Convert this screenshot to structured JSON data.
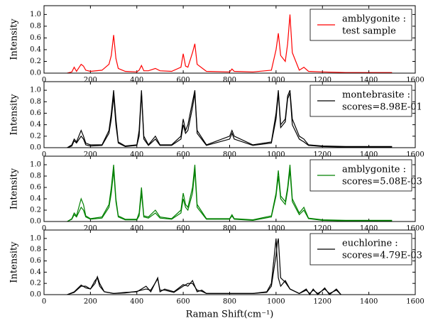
{
  "chart_data": [
    {
      "type": "line",
      "ylabel": "Intensity",
      "legend": "upper right",
      "legend_note": "test sample",
      "xlim": [
        0,
        1600
      ],
      "xticks": [
        0,
        200,
        400,
        600,
        800,
        1000,
        1200,
        1400,
        1600
      ],
      "ylim": [
        0,
        1.15
      ],
      "yticks": [
        {
          "value": 0,
          "label": "0.0"
        },
        {
          "value": 0.2,
          "label": "0.2"
        },
        {
          "value": 0.4,
          "label": "0.4"
        },
        {
          "value": 0.6,
          "label": "0.6"
        },
        {
          "value": 0.8,
          "label": "0.8"
        },
        {
          "value": 1,
          "label": "1.0"
        }
      ],
      "x": [
        100,
        120,
        130,
        140,
        160,
        170,
        180,
        200,
        250,
        280,
        290,
        300,
        310,
        320,
        350,
        400,
        410,
        420,
        430,
        450,
        480,
        500,
        550,
        590,
        600,
        610,
        620,
        640,
        650,
        660,
        700,
        800,
        810,
        820,
        900,
        980,
        1000,
        1010,
        1020,
        1040,
        1050,
        1060,
        1070,
        1100,
        1120,
        1140,
        1200,
        1300,
        1400,
        1500
      ],
      "series": [
        {
          "name": "amblygonite :",
          "color": "#ff0000",
          "values": [
            0,
            0.02,
            0.1,
            0.03,
            0.15,
            0.12,
            0.05,
            0.03,
            0.05,
            0.15,
            0.3,
            0.65,
            0.25,
            0.08,
            0.03,
            0.02,
            0.05,
            0.13,
            0.04,
            0.04,
            0.08,
            0.04,
            0.03,
            0.1,
            0.33,
            0.12,
            0.1,
            0.35,
            0.5,
            0.15,
            0.03,
            0.02,
            0.07,
            0.03,
            0.02,
            0.05,
            0.4,
            0.68,
            0.3,
            0.2,
            0.5,
            1.0,
            0.35,
            0.05,
            0.1,
            0.03,
            0.02,
            0.01,
            0.01,
            0.01
          ]
        }
      ]
    },
    {
      "type": "line",
      "ylabel": "Intensity",
      "legend": "upper right",
      "legend_note": "scores=8.98E-01",
      "xlim": [
        0,
        1600
      ],
      "xticks": [
        0,
        200,
        400,
        600,
        800,
        1000,
        1200,
        1400,
        1600
      ],
      "ylim": [
        0,
        1.15
      ],
      "yticks": [
        {
          "value": 0,
          "label": "0.0"
        },
        {
          "value": 0.2,
          "label": "0.2"
        },
        {
          "value": 0.4,
          "label": "0.4"
        },
        {
          "value": 0.6,
          "label": "0.6"
        },
        {
          "value": 0.8,
          "label": "0.8"
        },
        {
          "value": 1,
          "label": "1.0"
        }
      ],
      "x": [
        100,
        120,
        130,
        140,
        160,
        170,
        180,
        200,
        250,
        280,
        290,
        300,
        310,
        320,
        350,
        400,
        410,
        420,
        430,
        450,
        480,
        500,
        550,
        590,
        600,
        610,
        620,
        640,
        650,
        660,
        700,
        800,
        810,
        820,
        900,
        980,
        1000,
        1010,
        1020,
        1040,
        1050,
        1060,
        1070,
        1100,
        1120,
        1140,
        1200,
        1300,
        1400,
        1500
      ],
      "series": [
        {
          "name": "montebrasite :",
          "color": "#000000",
          "values": [
            0,
            0.05,
            0.15,
            0.1,
            0.3,
            0.2,
            0.08,
            0.05,
            0.05,
            0.3,
            0.6,
            1.0,
            0.5,
            0.1,
            0.03,
            0.05,
            0.3,
            1.0,
            0.2,
            0.05,
            0.2,
            0.05,
            0.05,
            0.2,
            0.5,
            0.3,
            0.4,
            0.8,
            1.0,
            0.3,
            0.05,
            0.2,
            0.3,
            0.2,
            0.05,
            0.1,
            0.6,
            1.0,
            0.4,
            0.5,
            0.9,
            1.0,
            0.5,
            0.2,
            0.15,
            0.05,
            0.03,
            0.02,
            0.02,
            0.02
          ]
        },
        {
          "color": "#000000",
          "values": [
            0,
            0.03,
            0.12,
            0.08,
            0.2,
            0.15,
            0.05,
            0.03,
            0.04,
            0.25,
            0.5,
            0.9,
            0.4,
            0.08,
            0.02,
            0.04,
            0.2,
            0.95,
            0.15,
            0.04,
            0.15,
            0.04,
            0.04,
            0.15,
            0.4,
            0.25,
            0.3,
            0.7,
            0.95,
            0.25,
            0.04,
            0.15,
            0.25,
            0.15,
            0.04,
            0.08,
            0.5,
            0.95,
            0.35,
            0.45,
            0.85,
            0.95,
            0.4,
            0.15,
            0.1,
            0.04,
            0.02,
            0.01,
            0.01,
            0.01
          ]
        }
      ]
    },
    {
      "type": "line",
      "ylabel": "Intensity",
      "legend": "upper right",
      "legend_note": "scores=5.08E-03",
      "xlim": [
        0,
        1600
      ],
      "xticks": [
        0,
        200,
        400,
        600,
        800,
        1000,
        1200,
        1400,
        1600
      ],
      "ylim": [
        0,
        1.15
      ],
      "yticks": [
        {
          "value": 0,
          "label": "0.0"
        },
        {
          "value": 0.2,
          "label": "0.2"
        },
        {
          "value": 0.4,
          "label": "0.4"
        },
        {
          "value": 0.6,
          "label": "0.6"
        },
        {
          "value": 0.8,
          "label": "0.8"
        },
        {
          "value": 1,
          "label": "1.0"
        }
      ],
      "x": [
        100,
        120,
        130,
        140,
        160,
        170,
        180,
        200,
        250,
        280,
        290,
        300,
        310,
        320,
        350,
        400,
        410,
        420,
        430,
        450,
        480,
        500,
        550,
        590,
        600,
        610,
        620,
        640,
        650,
        660,
        700,
        800,
        810,
        820,
        900,
        980,
        1000,
        1010,
        1020,
        1040,
        1050,
        1060,
        1070,
        1100,
        1120,
        1140,
        1200,
        1300,
        1400,
        1500
      ],
      "series": [
        {
          "name": "amblygonite :",
          "color": "#008000",
          "values": [
            0,
            0.05,
            0.15,
            0.1,
            0.4,
            0.3,
            0.1,
            0.05,
            0.08,
            0.3,
            0.6,
            1.0,
            0.4,
            0.1,
            0.04,
            0.04,
            0.15,
            0.6,
            0.1,
            0.08,
            0.2,
            0.08,
            0.05,
            0.2,
            0.5,
            0.3,
            0.25,
            0.6,
            1.0,
            0.3,
            0.05,
            0.05,
            0.12,
            0.05,
            0.03,
            0.1,
            0.5,
            0.9,
            0.45,
            0.35,
            0.6,
            1.0,
            0.4,
            0.15,
            0.25,
            0.06,
            0.03,
            0.02,
            0.02,
            0.02
          ]
        },
        {
          "color": "#008000",
          "values": [
            0,
            0.04,
            0.12,
            0.08,
            0.25,
            0.2,
            0.08,
            0.04,
            0.06,
            0.25,
            0.5,
            0.9,
            0.35,
            0.08,
            0.03,
            0.03,
            0.1,
            0.5,
            0.08,
            0.06,
            0.15,
            0.06,
            0.04,
            0.15,
            0.4,
            0.25,
            0.2,
            0.5,
            0.9,
            0.25,
            0.04,
            0.04,
            0.1,
            0.04,
            0.02,
            0.08,
            0.45,
            0.8,
            0.4,
            0.3,
            0.55,
            0.9,
            0.35,
            0.12,
            0.2,
            0.05,
            0.02,
            0.01,
            0.01,
            0.01
          ]
        }
      ]
    },
    {
      "type": "line",
      "ylabel": "Intensity",
      "xlabel": "Raman Shift(cm⁻¹)",
      "legend": "upper right",
      "legend_note": "scores=4.79E-03",
      "xlim": [
        0,
        1600
      ],
      "xticks": [
        0,
        200,
        400,
        600,
        800,
        1000,
        1200,
        1400,
        1600
      ],
      "ylim": [
        0,
        1.15
      ],
      "yticks": [
        {
          "value": 0,
          "label": "0.0"
        },
        {
          "value": 0.2,
          "label": "0.2"
        },
        {
          "value": 0.4,
          "label": "0.4"
        },
        {
          "value": 0.6,
          "label": "0.6"
        },
        {
          "value": 0.8,
          "label": "0.8"
        },
        {
          "value": 1,
          "label": "1.0"
        }
      ],
      "x": [
        100,
        130,
        160,
        180,
        200,
        220,
        230,
        240,
        260,
        300,
        350,
        400,
        440,
        460,
        490,
        500,
        520,
        560,
        600,
        620,
        640,
        660,
        680,
        700,
        800,
        900,
        960,
        980,
        1000,
        1005,
        1010,
        1020,
        1040,
        1060,
        1100,
        1130,
        1145,
        1160,
        1180,
        1210,
        1230,
        1260,
        1280
      ],
      "series": [
        {
          "name": "euchlorine :",
          "color": "#000000",
          "values": [
            0,
            0.05,
            0.17,
            0.12,
            0.1,
            0.25,
            0.3,
            0.15,
            0.05,
            0.02,
            0.04,
            0.05,
            0.15,
            0.05,
            0.3,
            0.05,
            0.1,
            0.05,
            0.18,
            0.15,
            0.25,
            0.05,
            0.08,
            0.02,
            0.02,
            0.02,
            0.05,
            0.2,
            1.0,
            0.6,
            0.3,
            0.15,
            0.25,
            0.1,
            0.02,
            0.1,
            0.0,
            0.1,
            0.0,
            0.12,
            0.0,
            0.1,
            0.0
          ]
        },
        {
          "color": "#000000",
          "values": [
            0,
            0.04,
            0.15,
            0.15,
            0.1,
            0.2,
            0.32,
            0.2,
            0.05,
            0.02,
            0.03,
            0.06,
            0.1,
            0.08,
            0.28,
            0.08,
            0.08,
            0.04,
            0.15,
            0.2,
            0.2,
            0.08,
            0.06,
            0.02,
            0.02,
            0.02,
            0.04,
            0.15,
            0.7,
            0.9,
            1.0,
            0.3,
            0.22,
            0.1,
            0.02,
            0.08,
            0.02,
            0.08,
            0.02,
            0.1,
            0.02,
            0.08,
            0.0
          ]
        }
      ]
    }
  ]
}
